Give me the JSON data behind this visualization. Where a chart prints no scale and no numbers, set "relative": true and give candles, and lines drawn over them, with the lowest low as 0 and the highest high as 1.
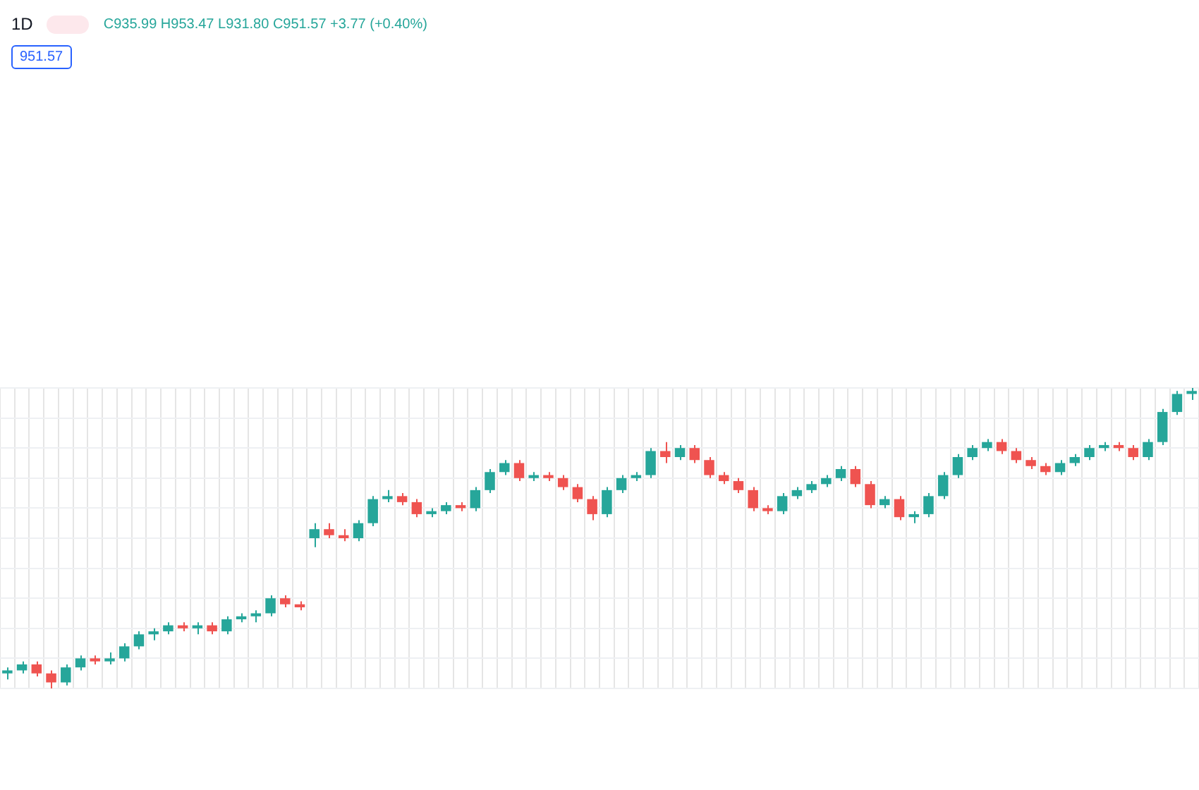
{
  "chart_data": {
    "type": "candlestick",
    "title": "1D",
    "relative": true,
    "grid": true,
    "annotations": [
      "C935.99 H953.47 L931.80 C951.57 +3.77 (+0.40%)",
      "951.57"
    ],
    "categories": [
      null,
      null,
      null,
      null,
      null,
      null,
      null,
      null,
      null,
      null,
      null,
      null,
      null,
      null,
      null,
      null,
      null,
      null,
      null,
      null,
      null,
      null,
      null,
      null,
      null,
      null,
      null,
      null,
      null,
      null,
      null,
      null,
      null,
      null,
      null,
      null,
      null,
      null,
      null,
      null,
      null,
      null,
      null,
      null,
      null,
      null,
      null,
      null,
      null,
      null,
      null,
      null,
      null,
      null,
      null,
      null,
      null,
      null,
      null,
      null,
      null,
      null,
      null,
      null,
      null,
      null,
      null,
      null,
      null,
      null,
      null,
      null,
      null,
      null,
      null,
      null,
      null,
      null,
      null,
      null,
      null,
      null
    ],
    "ohlc": [
      [
        0.05,
        0.07,
        0.03,
        0.06
      ],
      [
        0.06,
        0.09,
        0.05,
        0.08
      ],
      [
        0.08,
        0.09,
        0.04,
        0.05
      ],
      [
        0.05,
        0.06,
        0.0,
        0.02
      ],
      [
        0.02,
        0.08,
        0.01,
        0.07
      ],
      [
        0.07,
        0.11,
        0.06,
        0.1
      ],
      [
        0.1,
        0.11,
        0.08,
        0.09
      ],
      [
        0.09,
        0.12,
        0.08,
        0.1
      ],
      [
        0.1,
        0.15,
        0.09,
        0.14
      ],
      [
        0.14,
        0.19,
        0.13,
        0.18
      ],
      [
        0.18,
        0.2,
        0.16,
        0.19
      ],
      [
        0.19,
        0.22,
        0.18,
        0.21
      ],
      [
        0.21,
        0.22,
        0.19,
        0.2
      ],
      [
        0.2,
        0.22,
        0.18,
        0.21
      ],
      [
        0.21,
        0.22,
        0.18,
        0.19
      ],
      [
        0.19,
        0.24,
        0.18,
        0.23
      ],
      [
        0.23,
        0.25,
        0.22,
        0.24
      ],
      [
        0.24,
        0.26,
        0.22,
        0.25
      ],
      [
        0.25,
        0.31,
        0.24,
        0.3
      ],
      [
        0.3,
        0.31,
        0.27,
        0.28
      ],
      [
        0.28,
        0.29,
        0.26,
        0.27
      ],
      [
        0.5,
        0.55,
        0.47,
        0.53
      ],
      [
        0.53,
        0.55,
        0.5,
        0.51
      ],
      [
        0.51,
        0.53,
        0.49,
        0.5
      ],
      [
        0.5,
        0.56,
        0.49,
        0.55
      ],
      [
        0.55,
        0.64,
        0.54,
        0.63
      ],
      [
        0.63,
        0.66,
        0.62,
        0.64
      ],
      [
        0.64,
        0.65,
        0.61,
        0.62
      ],
      [
        0.62,
        0.63,
        0.57,
        0.58
      ],
      [
        0.58,
        0.6,
        0.57,
        0.59
      ],
      [
        0.59,
        0.62,
        0.58,
        0.61
      ],
      [
        0.61,
        0.62,
        0.59,
        0.6
      ],
      [
        0.6,
        0.67,
        0.59,
        0.66
      ],
      [
        0.66,
        0.73,
        0.65,
        0.72
      ],
      [
        0.72,
        0.76,
        0.71,
        0.75
      ],
      [
        0.75,
        0.76,
        0.69,
        0.7
      ],
      [
        0.7,
        0.72,
        0.69,
        0.71
      ],
      [
        0.71,
        0.72,
        0.69,
        0.7
      ],
      [
        0.7,
        0.71,
        0.66,
        0.67
      ],
      [
        0.67,
        0.68,
        0.62,
        0.63
      ],
      [
        0.63,
        0.64,
        0.56,
        0.58
      ],
      [
        0.58,
        0.67,
        0.57,
        0.66
      ],
      [
        0.66,
        0.71,
        0.65,
        0.7
      ],
      [
        0.7,
        0.72,
        0.69,
        0.71
      ],
      [
        0.71,
        0.8,
        0.7,
        0.79
      ],
      [
        0.79,
        0.82,
        0.75,
        0.77
      ],
      [
        0.77,
        0.81,
        0.76,
        0.8
      ],
      [
        0.8,
        0.81,
        0.75,
        0.76
      ],
      [
        0.76,
        0.77,
        0.7,
        0.71
      ],
      [
        0.71,
        0.72,
        0.68,
        0.69
      ],
      [
        0.69,
        0.7,
        0.65,
        0.66
      ],
      [
        0.66,
        0.67,
        0.59,
        0.6
      ],
      [
        0.6,
        0.61,
        0.58,
        0.59
      ],
      [
        0.59,
        0.65,
        0.58,
        0.64
      ],
      [
        0.64,
        0.67,
        0.63,
        0.66
      ],
      [
        0.66,
        0.69,
        0.65,
        0.68
      ],
      [
        0.68,
        0.71,
        0.67,
        0.7
      ],
      [
        0.7,
        0.74,
        0.69,
        0.73
      ],
      [
        0.73,
        0.74,
        0.67,
        0.68
      ],
      [
        0.68,
        0.69,
        0.6,
        0.61
      ],
      [
        0.61,
        0.64,
        0.6,
        0.63
      ],
      [
        0.63,
        0.64,
        0.56,
        0.57
      ],
      [
        0.57,
        0.59,
        0.55,
        0.58
      ],
      [
        0.58,
        0.65,
        0.57,
        0.64
      ],
      [
        0.64,
        0.72,
        0.63,
        0.71
      ],
      [
        0.71,
        0.78,
        0.7,
        0.77
      ],
      [
        0.77,
        0.81,
        0.76,
        0.8
      ],
      [
        0.8,
        0.83,
        0.79,
        0.82
      ],
      [
        0.82,
        0.83,
        0.78,
        0.79
      ],
      [
        0.79,
        0.8,
        0.75,
        0.76
      ],
      [
        0.76,
        0.77,
        0.73,
        0.74
      ],
      [
        0.74,
        0.75,
        0.71,
        0.72
      ],
      [
        0.72,
        0.76,
        0.71,
        0.75
      ],
      [
        0.75,
        0.78,
        0.74,
        0.77
      ],
      [
        0.77,
        0.81,
        0.76,
        0.8
      ],
      [
        0.8,
        0.82,
        0.79,
        0.81
      ],
      [
        0.81,
        0.82,
        0.79,
        0.8
      ],
      [
        0.8,
        0.81,
        0.76,
        0.77
      ],
      [
        0.77,
        0.83,
        0.76,
        0.82
      ],
      [
        0.82,
        0.93,
        0.81,
        0.92
      ],
      [
        0.92,
        0.99,
        0.91,
        0.98
      ],
      [
        0.98,
        1.0,
        0.96,
        0.99
      ]
    ],
    "colors": [
      "#26a69a",
      "#26a69a",
      "#ef5350",
      "#ef5350",
      "#26a69a",
      "#26a69a",
      "#ef5350",
      "#26a69a",
      "#26a69a",
      "#26a69a",
      "#26a69a",
      "#26a69a",
      "#ef5350",
      "#26a69a",
      "#ef5350",
      "#26a69a",
      "#26a69a",
      "#26a69a",
      "#26a69a",
      "#ef5350",
      "#ef5350",
      "#26a69a",
      "#ef5350",
      "#ef5350",
      "#26a69a",
      "#26a69a",
      "#26a69a",
      "#ef5350",
      "#ef5350",
      "#26a69a",
      "#26a69a",
      "#ef5350",
      "#26a69a",
      "#26a69a",
      "#26a69a",
      "#ef5350",
      "#26a69a",
      "#ef5350",
      "#ef5350",
      "#ef5350",
      "#ef5350",
      "#26a69a",
      "#26a69a",
      "#26a69a",
      "#26a69a",
      "#ef5350",
      "#26a69a",
      "#ef5350",
      "#ef5350",
      "#ef5350",
      "#ef5350",
      "#ef5350",
      "#ef5350",
      "#26a69a",
      "#26a69a",
      "#26a69a",
      "#26a69a",
      "#26a69a",
      "#ef5350",
      "#ef5350",
      "#26a69a",
      "#ef5350",
      "#26a69a",
      "#26a69a",
      "#26a69a",
      "#26a69a",
      "#26a69a",
      "#26a69a",
      "#ef5350",
      "#ef5350",
      "#ef5350",
      "#ef5350",
      "#26a69a",
      "#26a69a",
      "#26a69a",
      "#26a69a",
      "#ef5350",
      "#ef5350",
      "#26a69a",
      "#26a69a",
      "#26a69a",
      "#26a69a"
    ]
  }
}
